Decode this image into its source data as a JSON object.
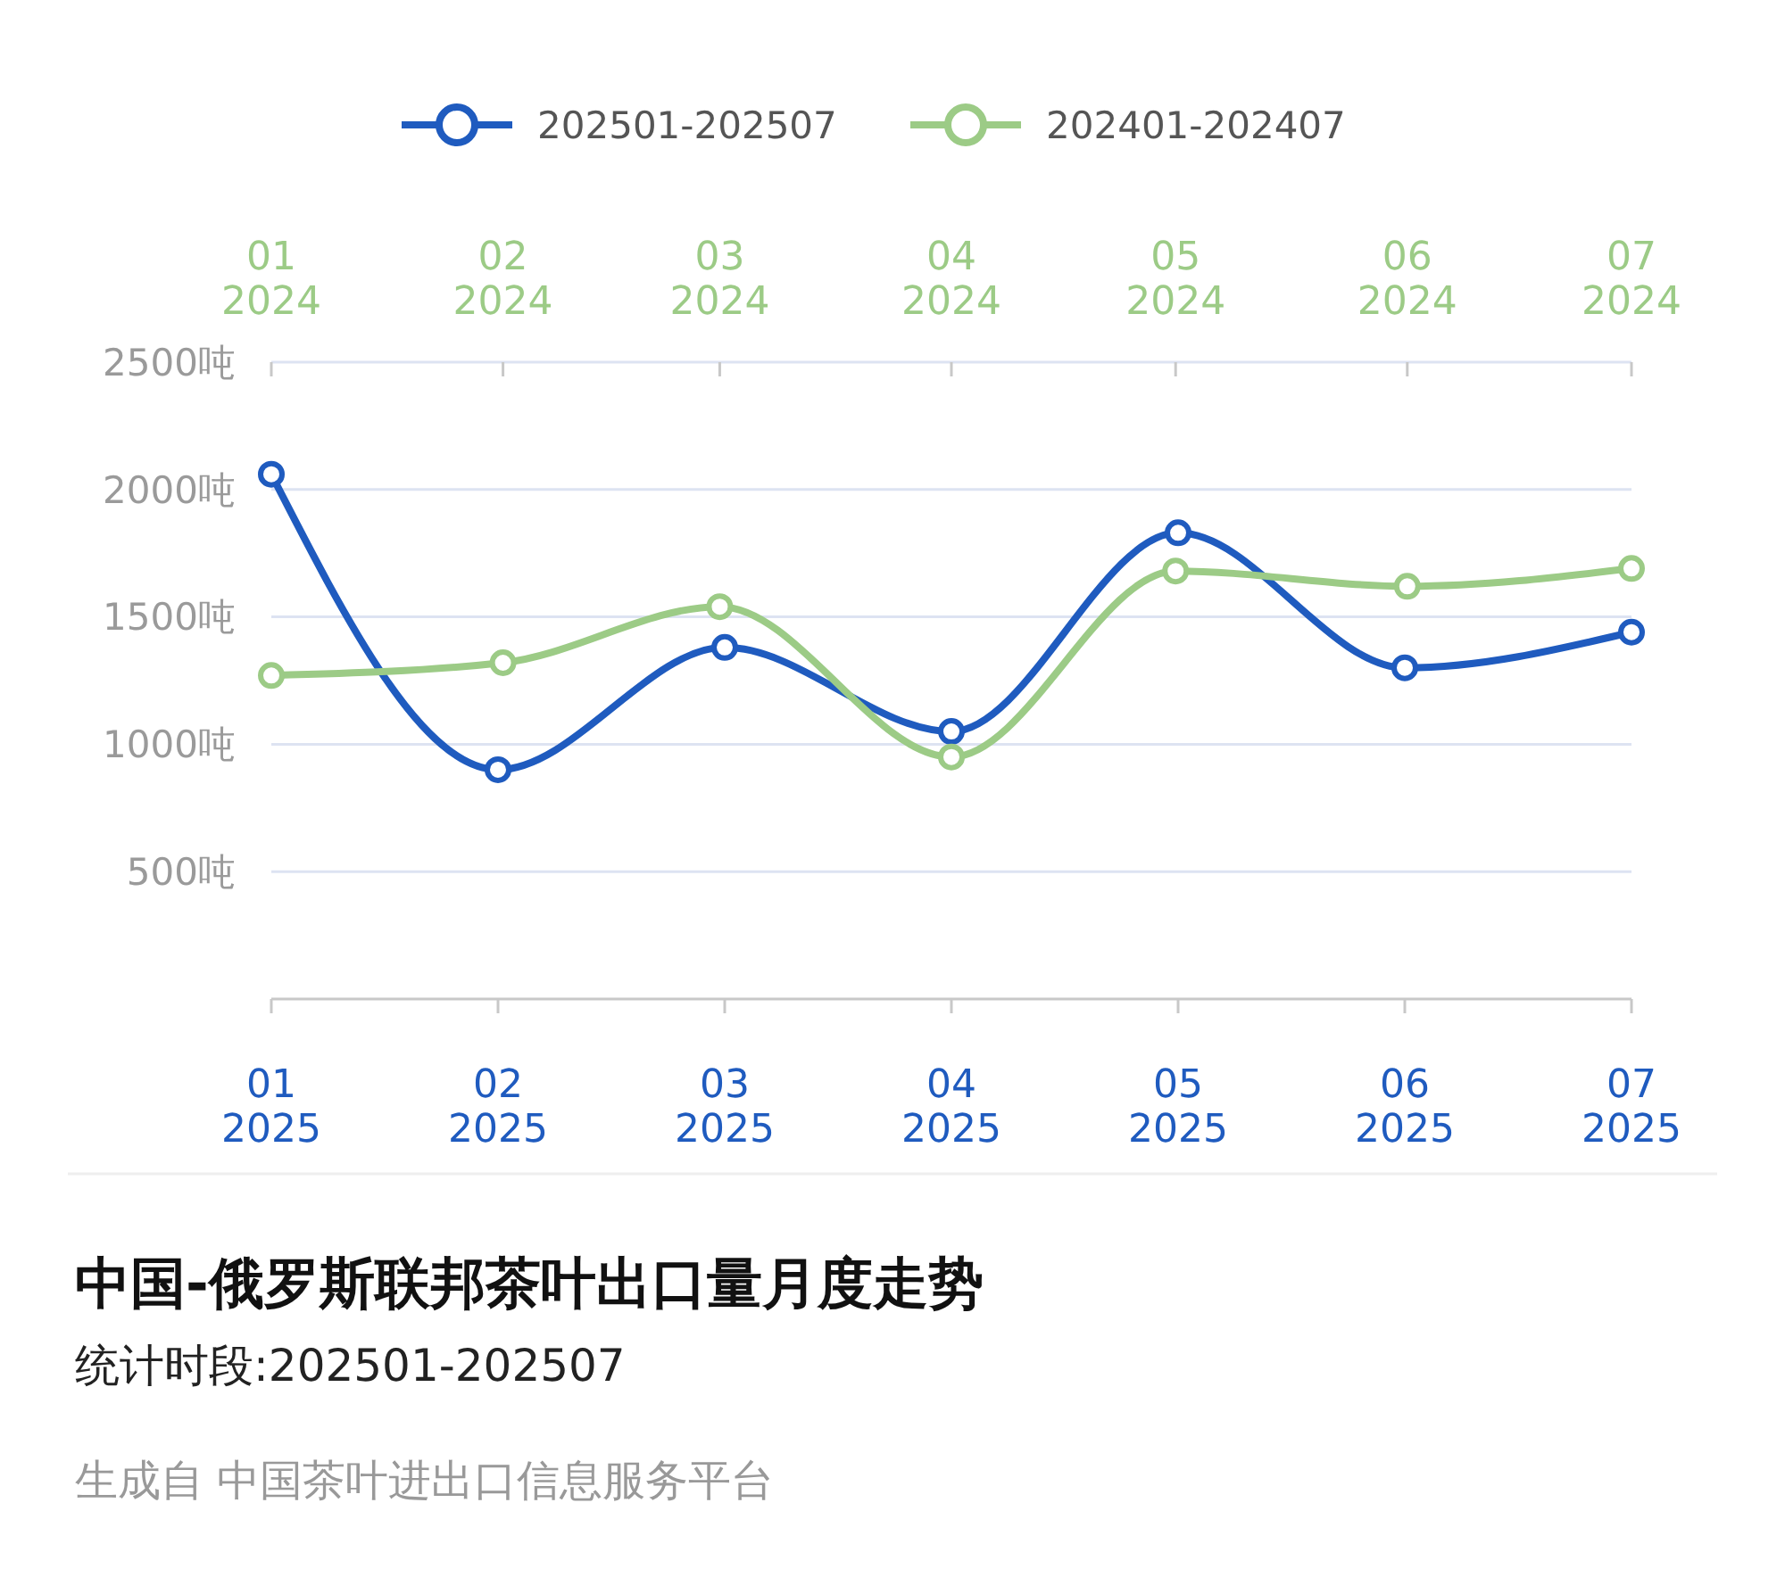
{
  "chart_data": {
    "type": "line",
    "title": "中国-俄罗斯联邦茶叶出口量月度走势",
    "subtitle": "统计时段:202501-202507",
    "annotations": [
      "生成自 中国茶叶进出口信息服务平台"
    ],
    "categories": [
      "01\n2025",
      "02\n2025",
      "03\n2025",
      "04\n2025",
      "05\n2025",
      "06\n2025",
      "07\n2025"
    ],
    "x2lim": [
      "2024-01",
      "2024-07"
    ],
    "x2ticks": [
      {
        "value": "2024-01",
        "label": "01\n2024"
      },
      {
        "value": "2024-02",
        "label": "02\n2024"
      },
      {
        "value": "2024-03",
        "label": "03\n2024"
      },
      {
        "value": "2024-04",
        "label": "04\n2024"
      },
      {
        "value": "2024-05",
        "label": "05\n2024"
      },
      {
        "value": "2024-06",
        "label": "06\n2024"
      },
      {
        "value": "2024-07",
        "label": "07\n2024"
      }
    ],
    "series": [
      {
        "name": "202501-202507",
        "color": "#1f5bbf",
        "values": [
          2060,
          900,
          1380,
          1050,
          1830,
          1300,
          1440
        ]
      },
      {
        "name": "202401-202407",
        "color": "#9ccb86",
        "axis": "x2",
        "x": [
          "2024-01",
          "2024-02",
          "2024-03",
          "2024-04",
          "2024-05",
          "2024-06",
          "2024-07"
        ],
        "values": [
          1270,
          1320,
          1540,
          950,
          1680,
          1620,
          1690
        ]
      }
    ],
    "ylim": [
      0,
      2500
    ],
    "yticks": [
      {
        "value": 500,
        "label": "500吨"
      },
      {
        "value": 1000,
        "label": "1000吨"
      },
      {
        "value": 1500,
        "label": "1500吨"
      },
      {
        "value": 2000,
        "label": "2000吨"
      },
      {
        "value": 2500,
        "label": "2500吨"
      }
    ],
    "grid": "y",
    "legend": "top",
    "marker": "circle",
    "line_style": "solid"
  }
}
